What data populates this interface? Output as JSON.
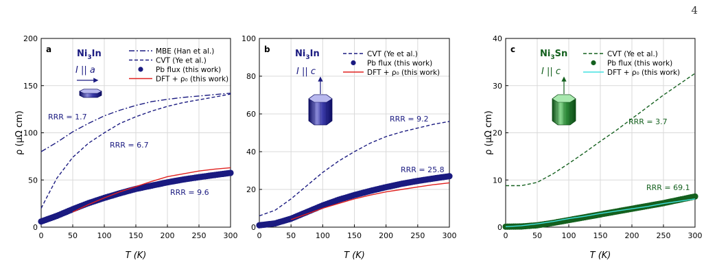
{
  "page_number": "4",
  "colors": {
    "navy": "#1a1a80",
    "green": "#14601e",
    "red": "#e0201e",
    "cyan": "#40e0e0"
  },
  "chart_data": [
    {
      "panel": "a",
      "type": "line",
      "compound": "Ni₃In",
      "current_direction": "I || a",
      "xlabel": "T (K)",
      "ylabel": "ρ (μΩ cm)",
      "xlim": [
        0,
        300
      ],
      "ylim": [
        0,
        200
      ],
      "xticks": [
        0,
        50,
        100,
        150,
        200,
        250,
        300
      ],
      "yticks": [
        0,
        50,
        100,
        150,
        200
      ],
      "legend_position": "top-right",
      "series": [
        {
          "name": "MBE (Han et al.)",
          "style": "dashdot",
          "color": "#1a1a80",
          "x": [
            0,
            25,
            50,
            75,
            100,
            125,
            150,
            175,
            200,
            225,
            250,
            275,
            300
          ],
          "y": [
            80,
            90,
            101,
            110,
            118,
            124,
            129,
            133,
            135.5,
            137.5,
            139,
            140.5,
            142
          ]
        },
        {
          "name": "CVT (Ye et al.)",
          "style": "dashed",
          "color": "#1a1a80",
          "x": [
            0,
            10,
            25,
            50,
            75,
            100,
            125,
            150,
            175,
            200,
            225,
            250,
            275,
            300
          ],
          "y": [
            20,
            33,
            52,
            74,
            89,
            100,
            110,
            117,
            123,
            128,
            132,
            135,
            138,
            141
          ]
        },
        {
          "name": "Pb flux (this work)",
          "style": "markers",
          "color": "#1a1a80",
          "x": [
            0,
            25,
            50,
            75,
            100,
            125,
            150,
            175,
            200,
            225,
            250,
            275,
            300
          ],
          "y": [
            6,
            12,
            19,
            25.5,
            31,
            36,
            40.5,
            44,
            47.5,
            50.5,
            53,
            55.3,
            57.5
          ]
        },
        {
          "name": "DFT + ρ₀ (this work)",
          "style": "solid",
          "color": "#e0201e",
          "x": [
            50,
            75,
            100,
            125,
            150,
            175,
            200,
            225,
            250,
            275,
            300
          ],
          "y": [
            16,
            24,
            31,
            37.5,
            43,
            48.5,
            53.5,
            56.5,
            59.5,
            61.5,
            63
          ]
        }
      ],
      "annotations": [
        {
          "text": "RRR = 1.7"
        },
        {
          "text": "RRR = 6.7"
        },
        {
          "text": "RRR = 9.6"
        }
      ]
    },
    {
      "panel": "b",
      "type": "line",
      "compound": "Ni₃In",
      "current_direction": "I || c",
      "xlabel": "T (K)",
      "ylabel": "",
      "xlim": [
        0,
        300
      ],
      "ylim": [
        0,
        100
      ],
      "xticks": [
        0,
        50,
        100,
        150,
        200,
        250,
        300
      ],
      "yticks": [
        0,
        20,
        40,
        60,
        80,
        100
      ],
      "legend_position": "top-right",
      "series": [
        {
          "name": "CVT (Ye et al.)",
          "style": "dashed",
          "color": "#1a1a80",
          "x": [
            0,
            25,
            50,
            75,
            100,
            125,
            150,
            175,
            200,
            225,
            250,
            275,
            300
          ],
          "y": [
            6,
            9,
            15,
            22,
            29,
            35,
            40,
            44.5,
            48,
            50.5,
            52.5,
            54.5,
            56
          ]
        },
        {
          "name": "Pb flux (this work)",
          "style": "markers",
          "color": "#1a1a80",
          "x": [
            0,
            25,
            50,
            75,
            100,
            125,
            150,
            175,
            200,
            225,
            250,
            275,
            300
          ],
          "y": [
            1,
            2,
            4.5,
            8,
            11.5,
            14.5,
            17,
            19.2,
            21.2,
            23,
            24.5,
            25.8,
            27
          ]
        },
        {
          "name": "DFT + ρ₀ (this work)",
          "style": "solid",
          "color": "#e0201e",
          "x": [
            50,
            75,
            100,
            125,
            150,
            175,
            200,
            225,
            250,
            275,
            300
          ],
          "y": [
            4,
            7,
            10,
            12.5,
            15,
            17,
            18.7,
            20,
            21.3,
            22.5,
            23.5
          ]
        }
      ],
      "annotations": [
        {
          "text": "RRR = 9.2"
        },
        {
          "text": "RRR = 25.8"
        }
      ]
    },
    {
      "panel": "c",
      "type": "line",
      "compound": "Ni₃Sn",
      "current_direction": "I || c",
      "xlabel": "T (K)",
      "ylabel": "ρ (μΩ cm)",
      "xlim": [
        0,
        300
      ],
      "ylim": [
        0,
        40
      ],
      "xticks": [
        0,
        50,
        100,
        150,
        200,
        250,
        300
      ],
      "yticks": [
        0,
        10,
        20,
        30,
        40
      ],
      "legend_position": "top-right",
      "series": [
        {
          "name": "CVT (Ye et al.)",
          "style": "dashed",
          "color": "#14601e",
          "x": [
            0,
            25,
            50,
            75,
            100,
            125,
            150,
            175,
            200,
            225,
            250,
            275,
            300
          ],
          "y": [
            8.8,
            8.8,
            9.5,
            11.3,
            13.5,
            15.8,
            18.2,
            20.5,
            23,
            25.5,
            28,
            30.3,
            32.6
          ]
        },
        {
          "name": "Pb flux (this work)",
          "style": "markers",
          "color": "#14601e",
          "x": [
            0,
            25,
            50,
            75,
            100,
            125,
            150,
            175,
            200,
            225,
            250,
            275,
            300
          ],
          "y": [
            0.1,
            0.15,
            0.4,
            0.9,
            1.5,
            2.1,
            2.7,
            3.3,
            3.9,
            4.5,
            5.1,
            5.8,
            6.5
          ]
        },
        {
          "name": "DFT + ρ₀ (this work)",
          "style": "solid",
          "color": "#40e0e0",
          "x": [
            0,
            25,
            50,
            75,
            100,
            125,
            150,
            175,
            200,
            225,
            250,
            275,
            300
          ],
          "y": [
            0.1,
            0.3,
            0.7,
            1.2,
            1.8,
            2.3,
            2.9,
            3.4,
            3.9,
            4.4,
            5.0,
            5.5,
            6.0
          ]
        }
      ],
      "annotations": [
        {
          "text": "RRR = 3.7"
        },
        {
          "text": "RRR = 69.1"
        }
      ]
    }
  ]
}
